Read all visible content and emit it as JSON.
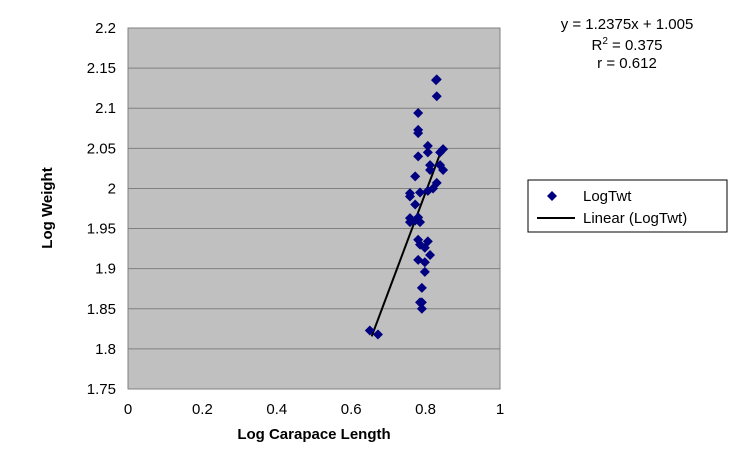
{
  "chart_data": {
    "type": "scatter",
    "xlabel": "Log Carapace Length",
    "ylabel": "Log Weight",
    "xlim": [
      0,
      1
    ],
    "ylim": [
      1.75,
      2.2
    ],
    "xticks": [
      "0",
      "0.2",
      "0.4",
      "0.6",
      "0.8",
      "1"
    ],
    "yticks": [
      "1.75",
      "1.8",
      "1.85",
      "1.9",
      "1.95",
      "2",
      "2.05",
      "2.1",
      "2.15",
      "2.2"
    ],
    "grid": "horizontal",
    "plot_background": "#c0c0c0",
    "legend_position": "right",
    "series": [
      {
        "name": "LogTwt",
        "color": "#000080",
        "marker": "diamond",
        "points": [
          [
            0.83,
            2.136
          ],
          [
            0.828,
            2.135
          ],
          [
            0.83,
            2.115
          ],
          [
            0.78,
            2.094
          ],
          [
            0.78,
            2.073
          ],
          [
            0.78,
            2.069
          ],
          [
            0.806,
            2.053
          ],
          [
            0.806,
            2.045
          ],
          [
            0.847,
            2.049
          ],
          [
            0.839,
            2.045
          ],
          [
            0.78,
            2.04
          ],
          [
            0.812,
            2.029
          ],
          [
            0.812,
            2.023
          ],
          [
            0.839,
            2.029
          ],
          [
            0.847,
            2.023
          ],
          [
            0.772,
            2.015
          ],
          [
            0.83,
            2.007
          ],
          [
            0.82,
            2.0
          ],
          [
            0.806,
            1.997
          ],
          [
            0.758,
            1.994
          ],
          [
            0.785,
            1.995
          ],
          [
            0.758,
            1.99
          ],
          [
            0.772,
            1.98
          ],
          [
            0.78,
            1.964
          ],
          [
            0.758,
            1.963
          ],
          [
            0.758,
            1.958
          ],
          [
            0.772,
            1.96
          ],
          [
            0.785,
            1.958
          ],
          [
            0.78,
            1.936
          ],
          [
            0.806,
            1.934
          ],
          [
            0.785,
            1.93
          ],
          [
            0.798,
            1.926
          ],
          [
            0.812,
            1.917
          ],
          [
            0.78,
            1.911
          ],
          [
            0.798,
            1.908
          ],
          [
            0.798,
            1.896
          ],
          [
            0.79,
            1.876
          ],
          [
            0.785,
            1.858
          ],
          [
            0.79,
            1.858
          ],
          [
            0.79,
            1.85
          ],
          [
            0.65,
            1.823
          ],
          [
            0.672,
            1.818
          ]
        ]
      },
      {
        "name": "Linear (LogTwt)",
        "color": "#000000",
        "type": "trendline",
        "slope": 1.2375,
        "intercept": 1.005,
        "x_range": [
          0.655,
          0.845
        ]
      }
    ],
    "annotations": {
      "equation": "y = 1.2375x + 1.005",
      "r2_label": "R",
      "r2_sup": "2",
      "r2_value": " = 0.375",
      "r": "r = 0.612"
    }
  }
}
